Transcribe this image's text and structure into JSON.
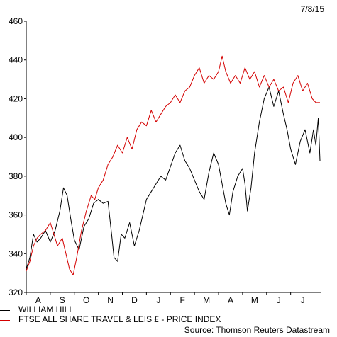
{
  "date_label": "7/8/15",
  "source": "Source: Thomson Reuters Datastream",
  "chart_data": {
    "type": "line",
    "title": "",
    "xlabel": "",
    "ylabel": "",
    "ylim": [
      320,
      460
    ],
    "yticks": [
      320,
      340,
      360,
      380,
      400,
      420,
      440,
      460
    ],
    "x_months": [
      "A",
      "S",
      "O",
      "N",
      "D",
      "J",
      "F",
      "M",
      "A",
      "M",
      "J",
      "J"
    ],
    "x_range_months": [
      0,
      12.25
    ],
    "grid": false,
    "legend_position": "bottom-left",
    "series": [
      {
        "name": "WILLIAM HILL",
        "color": "#000000",
        "points": [
          [
            0.0,
            332
          ],
          [
            0.15,
            338
          ],
          [
            0.3,
            350
          ],
          [
            0.45,
            346
          ],
          [
            0.6,
            348
          ],
          [
            0.8,
            352
          ],
          [
            1.0,
            346
          ],
          [
            1.2,
            352
          ],
          [
            1.4,
            362
          ],
          [
            1.55,
            374
          ],
          [
            1.7,
            370
          ],
          [
            1.85,
            358
          ],
          [
            2.0,
            347
          ],
          [
            2.2,
            342
          ],
          [
            2.4,
            354
          ],
          [
            2.6,
            358
          ],
          [
            2.8,
            366
          ],
          [
            3.0,
            368
          ],
          [
            3.2,
            366
          ],
          [
            3.4,
            367
          ],
          [
            3.55,
            350
          ],
          [
            3.65,
            338
          ],
          [
            3.8,
            336
          ],
          [
            3.95,
            350
          ],
          [
            4.1,
            348
          ],
          [
            4.3,
            356
          ],
          [
            4.5,
            344
          ],
          [
            4.7,
            352
          ],
          [
            4.85,
            360
          ],
          [
            5.0,
            368
          ],
          [
            5.2,
            372
          ],
          [
            5.4,
            376
          ],
          [
            5.6,
            380
          ],
          [
            5.8,
            378
          ],
          [
            6.0,
            385
          ],
          [
            6.2,
            392
          ],
          [
            6.4,
            396
          ],
          [
            6.6,
            388
          ],
          [
            6.8,
            384
          ],
          [
            7.0,
            378
          ],
          [
            7.2,
            372
          ],
          [
            7.4,
            368
          ],
          [
            7.6,
            382
          ],
          [
            7.8,
            392
          ],
          [
            8.0,
            386
          ],
          [
            8.15,
            376
          ],
          [
            8.3,
            366
          ],
          [
            8.45,
            360
          ],
          [
            8.6,
            372
          ],
          [
            8.8,
            380
          ],
          [
            9.0,
            384
          ],
          [
            9.1,
            376
          ],
          [
            9.2,
            362
          ],
          [
            9.35,
            374
          ],
          [
            9.5,
            392
          ],
          [
            9.7,
            408
          ],
          [
            9.9,
            420
          ],
          [
            10.1,
            426
          ],
          [
            10.3,
            416
          ],
          [
            10.5,
            424
          ],
          [
            10.7,
            412
          ],
          [
            10.85,
            404
          ],
          [
            11.0,
            394
          ],
          [
            11.2,
            386
          ],
          [
            11.4,
            398
          ],
          [
            11.6,
            404
          ],
          [
            11.8,
            392
          ],
          [
            11.95,
            404
          ],
          [
            12.05,
            396
          ],
          [
            12.15,
            410
          ],
          [
            12.22,
            388
          ]
        ]
      },
      {
        "name": "FTSE ALL SHARE TRAVEL & LEIS £ - PRICE INDEX",
        "color": "#d40000",
        "points": [
          [
            0.0,
            331
          ],
          [
            0.15,
            336
          ],
          [
            0.3,
            344
          ],
          [
            0.45,
            348
          ],
          [
            0.6,
            350
          ],
          [
            0.8,
            352
          ],
          [
            1.0,
            356
          ],
          [
            1.15,
            350
          ],
          [
            1.3,
            344
          ],
          [
            1.5,
            348
          ],
          [
            1.65,
            340
          ],
          [
            1.8,
            332
          ],
          [
            1.95,
            329
          ],
          [
            2.1,
            338
          ],
          [
            2.3,
            352
          ],
          [
            2.5,
            362
          ],
          [
            2.7,
            370
          ],
          [
            2.85,
            368
          ],
          [
            3.0,
            374
          ],
          [
            3.2,
            378
          ],
          [
            3.4,
            386
          ],
          [
            3.6,
            390
          ],
          [
            3.8,
            396
          ],
          [
            4.0,
            392
          ],
          [
            4.2,
            400
          ],
          [
            4.4,
            394
          ],
          [
            4.6,
            404
          ],
          [
            4.8,
            408
          ],
          [
            5.0,
            406
          ],
          [
            5.2,
            414
          ],
          [
            5.4,
            408
          ],
          [
            5.6,
            412
          ],
          [
            5.8,
            416
          ],
          [
            6.0,
            418
          ],
          [
            6.2,
            422
          ],
          [
            6.4,
            418
          ],
          [
            6.6,
            424
          ],
          [
            6.8,
            426
          ],
          [
            7.0,
            432
          ],
          [
            7.2,
            436
          ],
          [
            7.4,
            428
          ],
          [
            7.6,
            432
          ],
          [
            7.8,
            430
          ],
          [
            8.0,
            434
          ],
          [
            8.15,
            442
          ],
          [
            8.3,
            434
          ],
          [
            8.5,
            428
          ],
          [
            8.7,
            432
          ],
          [
            8.9,
            428
          ],
          [
            9.1,
            436
          ],
          [
            9.3,
            430
          ],
          [
            9.5,
            434
          ],
          [
            9.7,
            426
          ],
          [
            9.9,
            432
          ],
          [
            10.1,
            426
          ],
          [
            10.3,
            430
          ],
          [
            10.5,
            424
          ],
          [
            10.7,
            426
          ],
          [
            10.9,
            418
          ],
          [
            11.1,
            428
          ],
          [
            11.3,
            432
          ],
          [
            11.5,
            424
          ],
          [
            11.7,
            428
          ],
          [
            11.9,
            420
          ],
          [
            12.05,
            418
          ],
          [
            12.22,
            418
          ]
        ]
      }
    ]
  }
}
